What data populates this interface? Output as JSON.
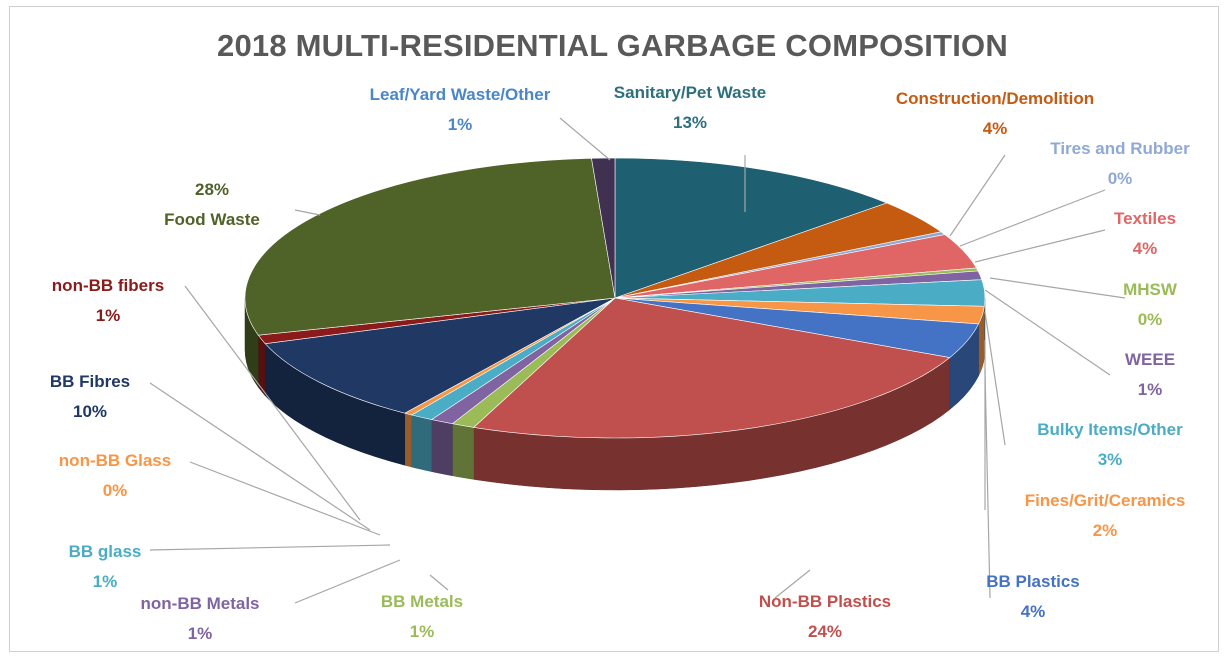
{
  "chart_data": {
    "type": "pie",
    "title": "2018 MULTI-RESIDENTIAL GARBAGE COMPOSITION",
    "legend": "none",
    "slices": [
      {
        "name": "Sanitary/Pet Waste",
        "value": 13,
        "value_label": "13%",
        "color": "#1f5f72"
      },
      {
        "name": "Construction/Demolition",
        "value": 4,
        "value_label": "4%",
        "color": "#c55a11"
      },
      {
        "name": "Tires and Rubber",
        "value": 0,
        "value_label": "0%",
        "color": "#8fa9d6"
      },
      {
        "name": "Textiles",
        "value": 4,
        "value_label": "4%",
        "color": "#e06666"
      },
      {
        "name": "MHSW",
        "value": 0,
        "value_label": "0%",
        "color": "#9bbb59"
      },
      {
        "name": "WEEE",
        "value": 1,
        "value_label": "1%",
        "color": "#8064a2"
      },
      {
        "name": "Bulky Items/Other",
        "value": 3,
        "value_label": "3%",
        "color": "#4bacc6"
      },
      {
        "name": "Fines/Grit/Ceramics",
        "value": 2,
        "value_label": "2%",
        "color": "#f79646"
      },
      {
        "name": "BB Plastics",
        "value": 4,
        "value_label": "4%",
        "color": "#4472c4"
      },
      {
        "name": "Non-BB Plastics",
        "value": 24,
        "value_label": "24%",
        "color": "#c0504d"
      },
      {
        "name": "BB Metals",
        "value": 1,
        "value_label": "1%",
        "color": "#9bbb59"
      },
      {
        "name": "non-BB Metals",
        "value": 1,
        "value_label": "1%",
        "color": "#8064a2"
      },
      {
        "name": "BB glass",
        "value": 1,
        "value_label": "1%",
        "color": "#4bacc6"
      },
      {
        "name": "non-BB Glass",
        "value": 0,
        "value_label": "0%",
        "color": "#f79646"
      },
      {
        "name": "BB Fibres",
        "value": 10,
        "value_label": "10%",
        "color": "#1f3864"
      },
      {
        "name": "non-BB fibers",
        "value": 1,
        "value_label": "1%",
        "color": "#8b1a1a"
      },
      {
        "name": "Food Waste",
        "value": 28,
        "value_label": "28%",
        "color": "#4f6228"
      },
      {
        "name": "Leaf/Yard Waste/Other",
        "value": 1,
        "value_label": "1%",
        "color": "#403151"
      }
    ]
  }
}
